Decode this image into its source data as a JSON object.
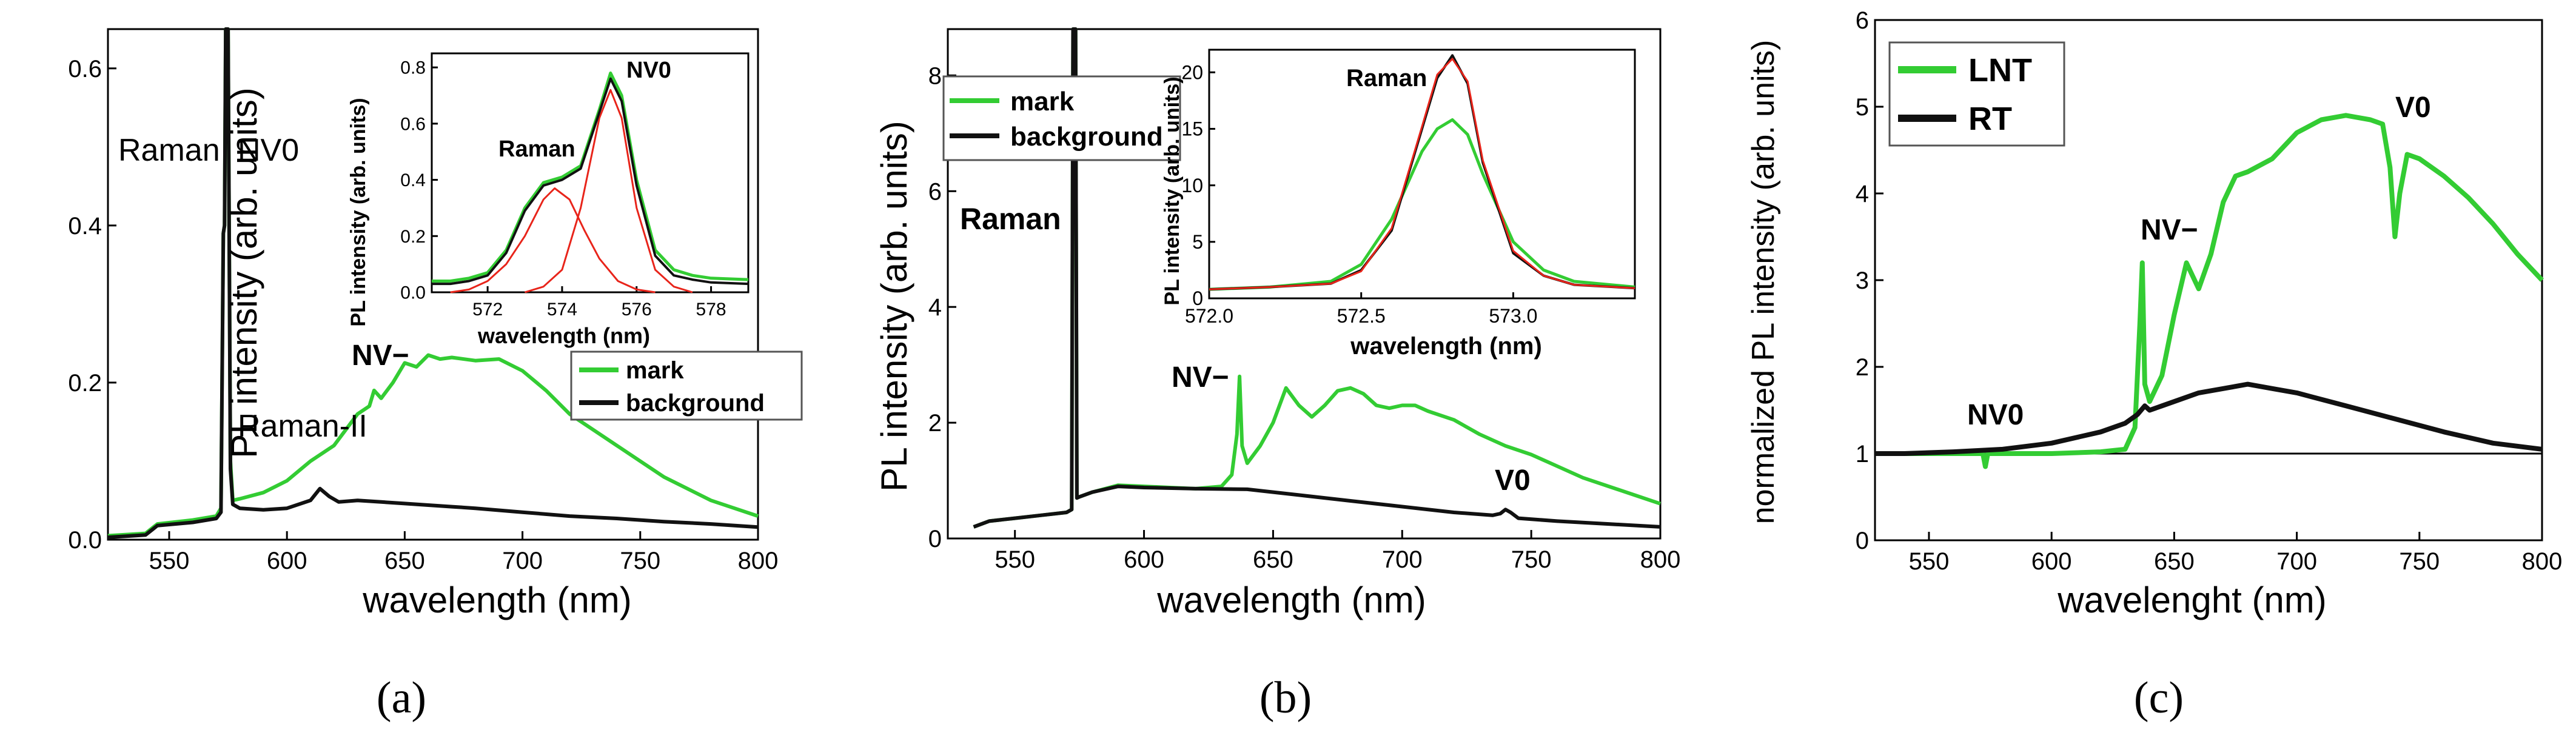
{
  "colors": {
    "mark": "#33cc33",
    "background": "#111111",
    "fit": "#e8241a",
    "baseline": "#000000"
  },
  "panels": [
    {
      "id": "a",
      "caption": "(a)",
      "chart_data": {
        "type": "line",
        "xlabel": "wavelength (nm)",
        "ylabel": "PL intensity (arb. units)",
        "xlim": [
          524,
          800
        ],
        "ylim": [
          0,
          0.65
        ],
        "xticks": [
          550,
          600,
          650,
          700,
          750,
          800
        ],
        "yticks": [
          0.0,
          0.2,
          0.4,
          0.6
        ],
        "ytick_labels": [
          "0.0",
          "0.2",
          "0.4",
          "0.6"
        ],
        "legend": {
          "placement": "right-middle",
          "items": [
            "mark",
            "background"
          ]
        },
        "annotations": [
          "Raman",
          "NV0",
          "NV−",
          "Raman-II"
        ],
        "series": [
          {
            "name": "mark",
            "x": [
              524,
              540,
              545,
              560,
              570,
              572,
              573,
              573.5,
              574,
              575,
              576,
              577,
              580,
              590,
              600,
              610,
              620,
              630,
              635,
              637,
              640,
              645,
              650,
              655,
              660,
              665,
              670,
              680,
              690,
              700,
              710,
              720,
              730,
              740,
              750,
              760,
              770,
              780,
              790,
              800
            ],
            "y": [
              0.005,
              0.008,
              0.02,
              0.025,
              0.03,
              0.04,
              0.39,
              0.4,
              0.65,
              0.65,
              0.1,
              0.05,
              0.052,
              0.06,
              0.075,
              0.1,
              0.12,
              0.16,
              0.17,
              0.19,
              0.18,
              0.2,
              0.225,
              0.22,
              0.235,
              0.23,
              0.232,
              0.228,
              0.23,
              0.215,
              0.19,
              0.16,
              0.14,
              0.12,
              0.1,
              0.08,
              0.065,
              0.05,
              0.04,
              0.03
            ]
          },
          {
            "name": "background",
            "x": [
              524,
              540,
              545,
              560,
              570,
              572,
              573,
              573.5,
              574,
              575,
              576,
              577,
              580,
              590,
              600,
              610,
              614,
              618,
              622,
              630,
              640,
              650,
              660,
              670,
              680,
              700,
              720,
              740,
              760,
              780,
              800
            ],
            "y": [
              0.003,
              0.006,
              0.018,
              0.022,
              0.027,
              0.035,
              0.39,
              0.4,
              0.65,
              0.65,
              0.09,
              0.045,
              0.04,
              0.038,
              0.04,
              0.05,
              0.065,
              0.055,
              0.048,
              0.05,
              0.048,
              0.046,
              0.044,
              0.042,
              0.04,
              0.035,
              0.03,
              0.027,
              0.023,
              0.02,
              0.016
            ]
          }
        ]
      },
      "inset": {
        "xlabel": "wavelength (nm)",
        "ylabel": "PL intensity (arb. units)",
        "xlim": [
          570.5,
          579
        ],
        "ylim": [
          0,
          0.85
        ],
        "xticks": [
          572,
          574,
          576,
          578
        ],
        "yticks": [
          0.0,
          0.2,
          0.4,
          0.6,
          0.8
        ],
        "ytick_labels": [
          "0.0",
          "0.2",
          "0.4",
          "0.6",
          "0.8"
        ],
        "annotations": [
          "Raman",
          "NV0"
        ],
        "series": [
          {
            "name": "mark",
            "x": [
              570.5,
              571,
              571.5,
              572,
              572.5,
              573,
              573.5,
              574,
              574.5,
              575,
              575.3,
              575.6,
              576,
              576.5,
              577,
              577.5,
              578,
              579
            ],
            "y": [
              0.04,
              0.04,
              0.05,
              0.07,
              0.15,
              0.3,
              0.39,
              0.41,
              0.45,
              0.65,
              0.78,
              0.7,
              0.4,
              0.15,
              0.08,
              0.06,
              0.05,
              0.045
            ]
          },
          {
            "name": "background",
            "x": [
              570.5,
              571,
              571.5,
              572,
              572.5,
              573,
              573.5,
              574,
              574.5,
              575,
              575.3,
              575.6,
              576,
              576.5,
              577,
              577.5,
              578,
              579
            ],
            "y": [
              0.03,
              0.03,
              0.04,
              0.06,
              0.14,
              0.29,
              0.38,
              0.4,
              0.44,
              0.64,
              0.76,
              0.68,
              0.38,
              0.13,
              0.06,
              0.045,
              0.035,
              0.03
            ]
          },
          {
            "name": "Raman fit",
            "x": [
              571,
              571.5,
              572,
              572.5,
              573,
              573.5,
              573.8,
              574.2,
              574.6,
              575,
              575.5,
              576,
              576.5
            ],
            "y": [
              0.0,
              0.01,
              0.04,
              0.1,
              0.2,
              0.33,
              0.37,
              0.33,
              0.22,
              0.12,
              0.04,
              0.01,
              0.0
            ]
          },
          {
            "name": "NV0 fit",
            "x": [
              573,
              573.5,
              574,
              574.5,
              575,
              575.3,
              575.6,
              576,
              576.5,
              577,
              577.5
            ],
            "y": [
              0.0,
              0.02,
              0.08,
              0.3,
              0.62,
              0.72,
              0.62,
              0.3,
              0.08,
              0.02,
              0.0
            ]
          }
        ]
      }
    },
    {
      "id": "b",
      "caption": "(b)",
      "chart_data": {
        "type": "line",
        "xlabel": "wavelength (nm)",
        "ylabel": "PL intensity (arb. units)",
        "xlim": [
          524,
          800
        ],
        "ylim": [
          0,
          8.8
        ],
        "xticks": [
          550,
          600,
          650,
          700,
          750,
          800
        ],
        "yticks": [
          0,
          2,
          4,
          6,
          8
        ],
        "ytick_labels": [
          "0",
          "2",
          "4",
          "6",
          "8"
        ],
        "legend": {
          "placement": "top-left",
          "items": [
            "mark",
            "background"
          ]
        },
        "annotations": [
          "Raman",
          "NV−",
          "V0"
        ],
        "series": [
          {
            "name": "mark",
            "x": [
              534,
              540,
              550,
              560,
              570,
              572,
              572.5,
              573,
              573.5,
              574,
              575,
              580,
              590,
              600,
              610,
              620,
              630,
              634,
              636,
              637,
              638,
              640,
              645,
              650,
              655,
              660,
              665,
              670,
              675,
              680,
              685,
              690,
              695,
              700,
              705,
              710,
              720,
              730,
              740,
              750,
              760,
              770,
              780,
              790,
              800
            ],
            "y": [
              0.2,
              0.3,
              0.35,
              0.4,
              0.45,
              0.5,
              8.8,
              8.8,
              8.8,
              0.7,
              0.72,
              0.8,
              0.92,
              0.9,
              0.88,
              0.86,
              0.9,
              1.1,
              1.8,
              2.8,
              1.6,
              1.3,
              1.6,
              2.0,
              2.6,
              2.3,
              2.1,
              2.3,
              2.55,
              2.6,
              2.5,
              2.3,
              2.25,
              2.3,
              2.3,
              2.2,
              2.05,
              1.8,
              1.6,
              1.45,
              1.25,
              1.05,
              0.9,
              0.75,
              0.6
            ]
          },
          {
            "name": "background",
            "x": [
              534,
              540,
              550,
              560,
              570,
              572,
              572.5,
              573,
              573.5,
              574,
              575,
              580,
              590,
              600,
              620,
              640,
              660,
              680,
              700,
              720,
              735,
              738,
              740,
              742,
              745,
              760,
              780,
              800
            ],
            "y": [
              0.2,
              0.3,
              0.35,
              0.4,
              0.45,
              0.5,
              8.8,
              8.8,
              8.8,
              0.7,
              0.72,
              0.8,
              0.9,
              0.88,
              0.86,
              0.85,
              0.75,
              0.65,
              0.55,
              0.45,
              0.4,
              0.43,
              0.5,
              0.45,
              0.35,
              0.3,
              0.25,
              0.2
            ]
          }
        ]
      },
      "inset": {
        "xlabel": "wavelength (nm)",
        "ylabel": "PL intensity (arb. units)",
        "xlim": [
          572.0,
          573.4
        ],
        "ylim": [
          0,
          22
        ],
        "xticks": [
          572.0,
          572.5,
          573.0
        ],
        "xtick_labels": [
          "572.0",
          "572.5",
          "573.0"
        ],
        "yticks": [
          0,
          5,
          10,
          15,
          20
        ],
        "ytick_labels": [
          "0",
          "5",
          "10",
          "15",
          "20"
        ],
        "annotations": [
          "Raman"
        ],
        "series": [
          {
            "name": "mark",
            "x": [
              572.0,
              572.2,
              572.4,
              572.5,
              572.6,
              572.7,
              572.75,
              572.8,
              572.85,
              572.9,
              573.0,
              573.1,
              573.2,
              573.4
            ],
            "y": [
              0.8,
              1.0,
              1.5,
              3.0,
              7.0,
              13.0,
              15.0,
              15.8,
              14.5,
              11.0,
              5.0,
              2.5,
              1.5,
              1.0
            ]
          },
          {
            "name": "background",
            "x": [
              572.0,
              572.2,
              572.4,
              572.5,
              572.6,
              572.7,
              572.75,
              572.8,
              572.85,
              572.9,
              573.0,
              573.1,
              573.2,
              573.4
            ],
            "y": [
              0.8,
              1.0,
              1.3,
              2.5,
              6.0,
              15.0,
              19.5,
              21.5,
              19.0,
              12.0,
              4.0,
              2.0,
              1.2,
              0.9
            ]
          },
          {
            "name": "fit",
            "x": [
              572.0,
              572.2,
              572.4,
              572.5,
              572.6,
              572.7,
              572.75,
              572.8,
              572.85,
              572.9,
              573.0,
              573.1,
              573.2,
              573.4
            ],
            "y": [
              0.8,
              1.0,
              1.3,
              2.4,
              6.2,
              15.2,
              19.8,
              21.2,
              19.2,
              12.2,
              4.2,
              2.0,
              1.2,
              0.9
            ]
          }
        ]
      }
    },
    {
      "id": "c",
      "caption": "(c)",
      "chart_data": {
        "type": "line",
        "xlabel": "wavelenght (nm)",
        "ylabel": "normalized PL intensity (arb. units)",
        "xlim": [
          528,
          800
        ],
        "ylim": [
          0,
          6
        ],
        "xticks": [
          550,
          600,
          650,
          700,
          750,
          800
        ],
        "yticks": [
          0,
          1,
          2,
          3,
          4,
          5,
          6
        ],
        "ytick_labels": [
          "0",
          "1",
          "2",
          "3",
          "4",
          "5",
          "6"
        ],
        "legend": {
          "placement": "top-left",
          "items": [
            "LNT",
            "RT"
          ]
        },
        "annotations": [
          "NV0",
          "NV−",
          "V0"
        ],
        "series": [
          {
            "name": "LNT",
            "x": [
              528,
              540,
              560,
              572,
              573,
              574,
              580,
              600,
              620,
              630,
              634,
              636,
              637,
              638,
              640,
              645,
              650,
              655,
              660,
              665,
              670,
              675,
              680,
              690,
              700,
              710,
              720,
              730,
              735,
              738,
              740,
              742,
              745,
              750,
              760,
              770,
              780,
              790,
              800
            ],
            "y": [
              1.0,
              1.0,
              1.0,
              1.0,
              0.85,
              1.0,
              1.0,
              1.0,
              1.02,
              1.05,
              1.3,
              2.5,
              3.2,
              1.8,
              1.6,
              1.9,
              2.6,
              3.2,
              2.9,
              3.3,
              3.9,
              4.2,
              4.25,
              4.4,
              4.7,
              4.85,
              4.9,
              4.85,
              4.8,
              4.3,
              3.5,
              4.0,
              4.45,
              4.4,
              4.2,
              3.95,
              3.65,
              3.3,
              3.0
            ]
          },
          {
            "name": "RT",
            "x": [
              528,
              540,
              560,
              580,
              600,
              620,
              630,
              635,
              638,
              640,
              645,
              650,
              660,
              670,
              680,
              690,
              700,
              720,
              740,
              760,
              780,
              800
            ],
            "y": [
              1.0,
              1.0,
              1.02,
              1.05,
              1.12,
              1.25,
              1.35,
              1.45,
              1.55,
              1.5,
              1.55,
              1.6,
              1.7,
              1.75,
              1.8,
              1.75,
              1.7,
              1.55,
              1.4,
              1.25,
              1.12,
              1.05
            ]
          },
          {
            "name": "baseline",
            "x": [
              528,
              800
            ],
            "y": [
              1.0,
              1.0
            ]
          }
        ]
      }
    }
  ]
}
